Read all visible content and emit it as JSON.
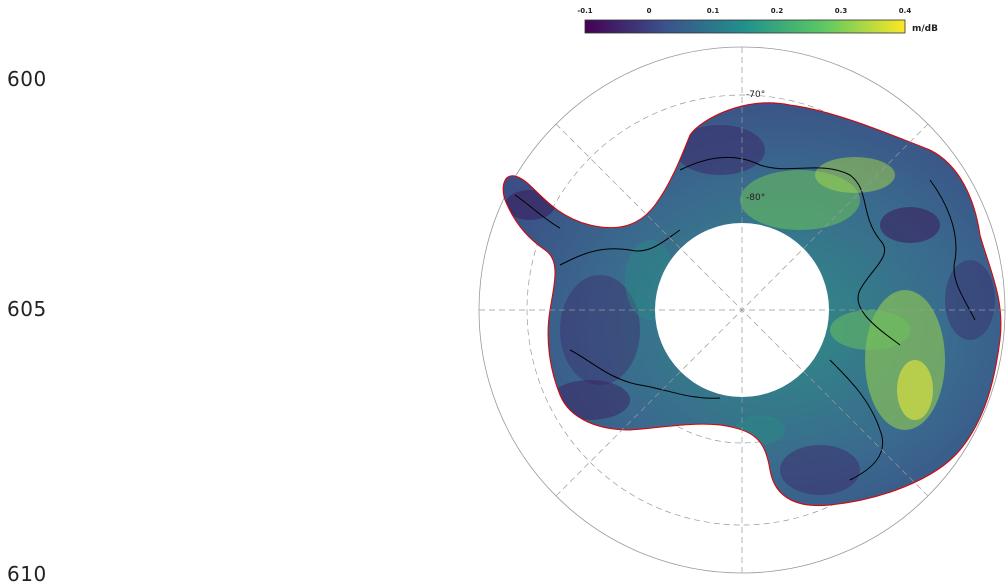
{
  "page": {
    "line_numbers": [
      "600",
      "605",
      "610"
    ]
  },
  "figure": {
    "colorbar": {
      "ticks": [
        "-0.1",
        "0",
        "0.1",
        "0.2",
        "0.3",
        "0.4"
      ],
      "unit": "m/dB",
      "colors": [
        "#440154",
        "#3b528b",
        "#21918c",
        "#5ec962",
        "#fde725"
      ]
    },
    "lat_labels": [
      "-70°",
      "-80°"
    ],
    "colors": {
      "coastline": "#e00000",
      "contour": "#000000",
      "grid": "#888888",
      "data_low": "#3b5b8c",
      "data_mid": "#2a8a84",
      "data_high": "#c8e040",
      "pole_hole": "#ffffff"
    }
  }
}
